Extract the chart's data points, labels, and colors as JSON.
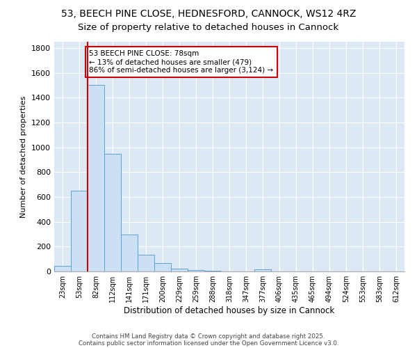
{
  "title1": "53, BEECH PINE CLOSE, HEDNESFORD, CANNOCK, WS12 4RZ",
  "title2": "Size of property relative to detached houses in Cannock",
  "xlabel": "Distribution of detached houses by size in Cannock",
  "ylabel": "Number of detached properties",
  "bin_labels": [
    "23sqm",
    "53sqm",
    "82sqm",
    "112sqm",
    "141sqm",
    "171sqm",
    "200sqm",
    "229sqm",
    "259sqm",
    "288sqm",
    "318sqm",
    "347sqm",
    "377sqm",
    "406sqm",
    "435sqm",
    "465sqm",
    "494sqm",
    "524sqm",
    "553sqm",
    "583sqm",
    "612sqm"
  ],
  "bar_heights": [
    47,
    650,
    1500,
    950,
    295,
    135,
    65,
    22,
    10,
    5,
    2,
    0,
    15,
    0,
    0,
    0,
    0,
    0,
    0,
    0,
    0
  ],
  "bar_color": "#cce0f5",
  "bar_edge_color": "#5ba3d9",
  "vline_x": 1.5,
  "vline_color": "#cc0000",
  "annotation_text": "53 BEECH PINE CLOSE: 78sqm\n← 13% of detached houses are smaller (479)\n86% of semi-detached houses are larger (3,124) →",
  "annotation_box_color": "#ffffff",
  "annotation_box_edge": "#cc0000",
  "ylim": [
    0,
    1850
  ],
  "yticks": [
    0,
    200,
    400,
    600,
    800,
    1000,
    1200,
    1400,
    1600,
    1800
  ],
  "background_color": "#dce8f5",
  "footer_line1": "Contains HM Land Registry data © Crown copyright and database right 2025.",
  "footer_line2": "Contains public sector information licensed under the Open Government Licence v3.0.",
  "title1_fontsize": 10,
  "title2_fontsize": 9.5
}
